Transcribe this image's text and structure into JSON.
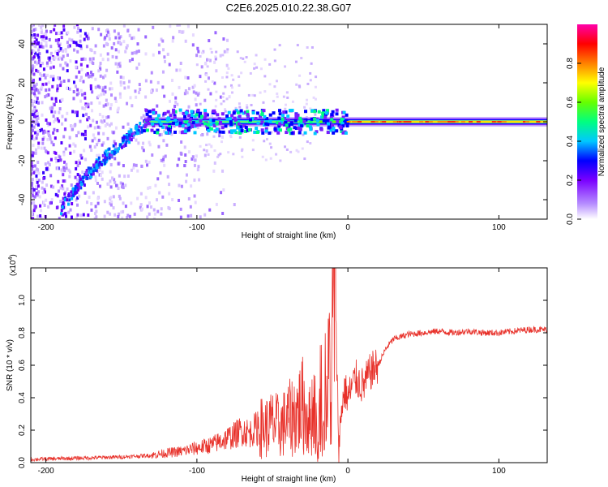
{
  "chart_data": [
    {
      "type": "heatmap",
      "title": "C2E6.2025.010.22.38.G07",
      "xlabel": "Height of straight line (km)",
      "ylabel": "Frequency (Hz)",
      "xlim": [
        -210,
        132
      ],
      "ylim": [
        -50,
        50
      ],
      "xticks": [
        -200,
        -100,
        0,
        100
      ],
      "yticks": [
        -40,
        -20,
        0,
        20,
        40
      ],
      "grid": false,
      "colorbar": {
        "label": "Normalized spectral amplitude",
        "range": [
          0,
          1
        ],
        "ticks": [
          "0.0",
          "0.2",
          "0.4",
          "0.6",
          "0.8"
        ]
      },
      "features": [
        {
          "name": "main line",
          "x": [
            -135,
            132
          ],
          "frequency": 0
        },
        {
          "name": "descending branch",
          "x": [
            -190,
            -135
          ],
          "frequency": [
            -48,
            -2
          ]
        },
        {
          "name": "scattered noise",
          "x": [
            -210,
            -80
          ]
        }
      ]
    },
    {
      "type": "line",
      "xlabel": "Height of straight line (km)",
      "ylabel": "SNR (10 * v/v)",
      "y_multiplier": "(x10^4)",
      "y_multiplier_parts": {
        "base": "(x10",
        "exp": "4",
        "close": ")"
      },
      "xlim": [
        -210,
        132
      ],
      "ylim": [
        0,
        1.2
      ],
      "xticks": [
        -200,
        -100,
        0,
        100
      ],
      "yticks": [
        "0.0",
        "0.2",
        "0.4",
        "0.6",
        "0.8",
        "1.0"
      ],
      "grid": false,
      "color": "#e8312a",
      "series": [
        {
          "x": [
            -210,
            -190,
            -170,
            -150,
            -130,
            -120,
            -110,
            -100,
            -90,
            -85,
            -80,
            -75,
            -70,
            -65,
            -60,
            -55,
            -50,
            -45,
            -40,
            -35,
            -30,
            -25,
            -22,
            -20,
            -18,
            -16,
            -15,
            -14,
            -12,
            -11,
            -10,
            -9,
            -8,
            -6,
            -4,
            -2,
            0,
            5,
            10,
            15,
            20,
            25,
            30,
            40,
            50,
            60,
            70,
            80,
            90,
            100,
            110,
            120,
            132
          ],
          "values": [
            0.02,
            0.025,
            0.03,
            0.035,
            0.045,
            0.06,
            0.07,
            0.09,
            0.11,
            0.13,
            0.15,
            0.17,
            0.2,
            0.18,
            0.22,
            0.21,
            0.24,
            0.22,
            0.26,
            0.3,
            0.35,
            0.25,
            0.4,
            0.02,
            0.5,
            0.15,
            0.55,
            0.3,
            0.7,
            0.2,
            0.95,
            1.2,
            0.85,
            0.1,
            0.35,
            0.45,
            0.4,
            0.52,
            0.47,
            0.56,
            0.6,
            0.7,
            0.76,
            0.79,
            0.8,
            0.81,
            0.8,
            0.81,
            0.8,
            0.8,
            0.81,
            0.82,
            0.82
          ]
        }
      ]
    }
  ]
}
